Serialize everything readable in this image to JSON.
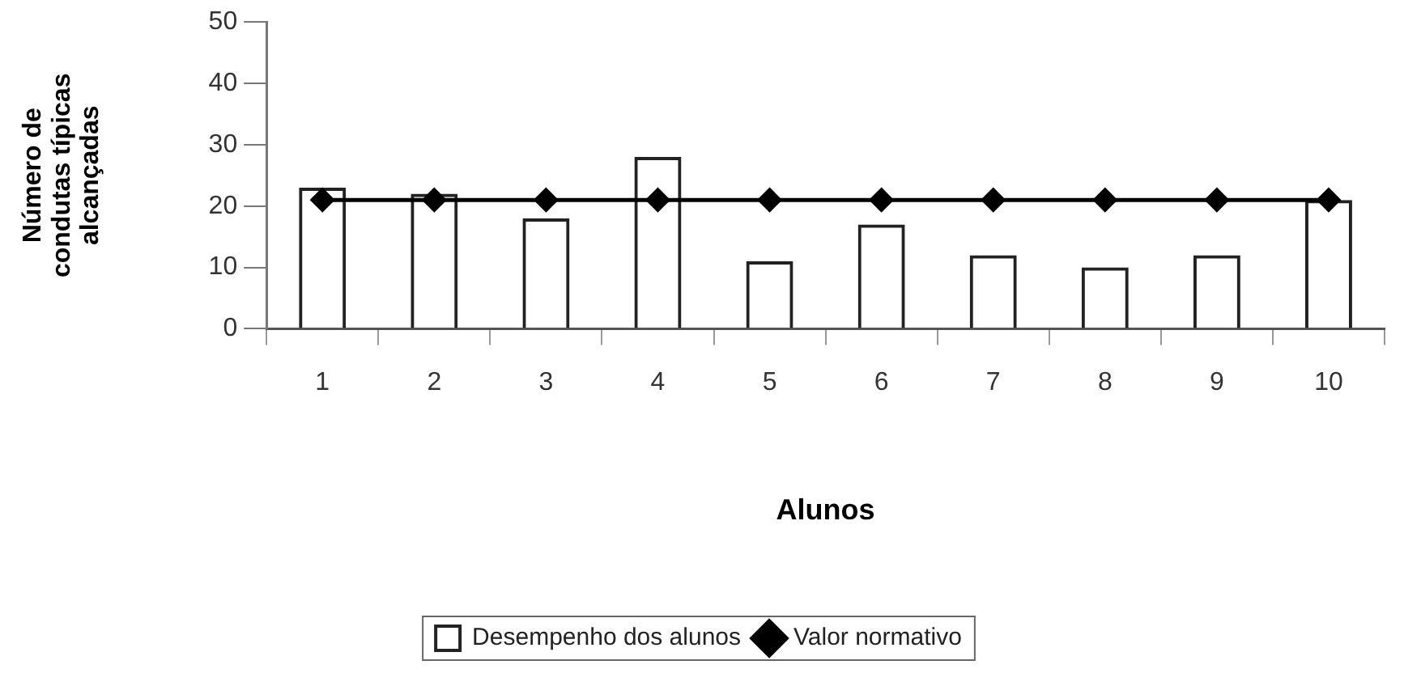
{
  "chart_data": {
    "type": "bar",
    "xlabel": "Alunos",
    "ylabel": "Número de condutas típicas alcançadas",
    "categories": [
      "1",
      "2",
      "3",
      "4",
      "5",
      "6",
      "7",
      "8",
      "9",
      "10"
    ],
    "series": [
      {
        "name": "Desempenho dos alunos",
        "color": "#222222",
        "values": [
          23,
          22,
          18,
          28,
          11,
          17,
          12,
          10,
          12,
          21
        ]
      },
      {
        "name": "Valor normativo",
        "type": "line",
        "color": "#000000",
        "marker": "diamond",
        "values": [
          21,
          21,
          21,
          21,
          21,
          21,
          21,
          21,
          21,
          21
        ]
      }
    ],
    "ylim": [
      0,
      50
    ],
    "yticks": [
      0,
      10,
      20,
      30,
      40,
      50
    ],
    "grid": false,
    "legend": "bottom"
  }
}
